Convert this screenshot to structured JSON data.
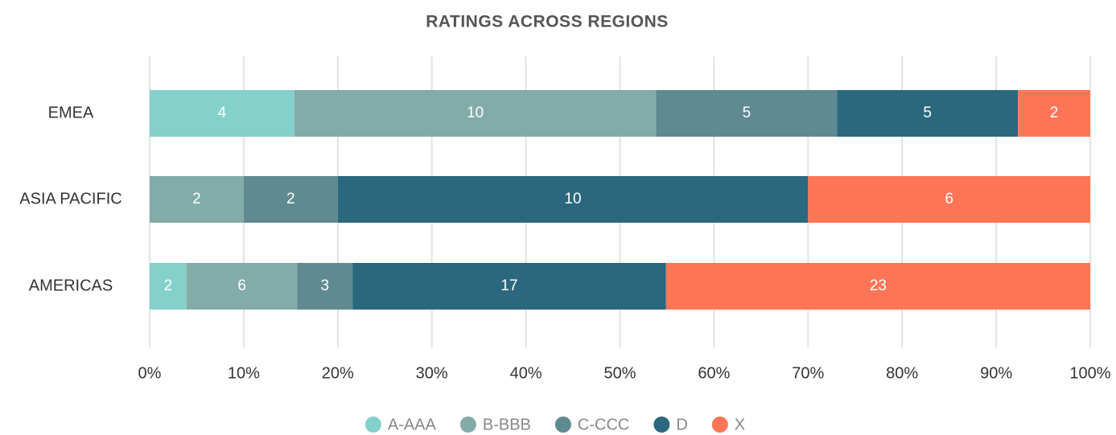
{
  "chart_data": {
    "type": "bar",
    "orientation": "horizontal",
    "stacked": "percent",
    "title": "RATINGS ACROSS REGIONS",
    "categories": [
      "EMEA",
      "ASIA PACIFIC",
      "AMERICAS"
    ],
    "series": [
      {
        "name": "A-AAA",
        "color": "#84d0cb",
        "values": [
          4,
          null,
          2
        ]
      },
      {
        "name": "B-BBB",
        "color": "#83aba8",
        "values": [
          10,
          2,
          6
        ]
      },
      {
        "name": "C-CCC",
        "color": "#5f8a91",
        "values": [
          5,
          2,
          3
        ]
      },
      {
        "name": "D",
        "color": "#2b687d",
        "values": [
          5,
          10,
          17
        ]
      },
      {
        "name": "X",
        "color": "#ff7657",
        "values": [
          2,
          6,
          23
        ]
      }
    ],
    "xlim": [
      0,
      100
    ],
    "xticks": [
      {
        "value": 0,
        "label": "0%"
      },
      {
        "value": 10,
        "label": "10%"
      },
      {
        "value": 20,
        "label": "20%"
      },
      {
        "value": 30,
        "label": "30%"
      },
      {
        "value": 40,
        "label": "40%"
      },
      {
        "value": 50,
        "label": "50%"
      },
      {
        "value": 60,
        "label": "60%"
      },
      {
        "value": 70,
        "label": "70%"
      },
      {
        "value": 80,
        "label": "80%"
      },
      {
        "value": 90,
        "label": "90%"
      },
      {
        "value": 100,
        "label": "100%"
      }
    ],
    "grid": true,
    "legend": "bottom"
  }
}
